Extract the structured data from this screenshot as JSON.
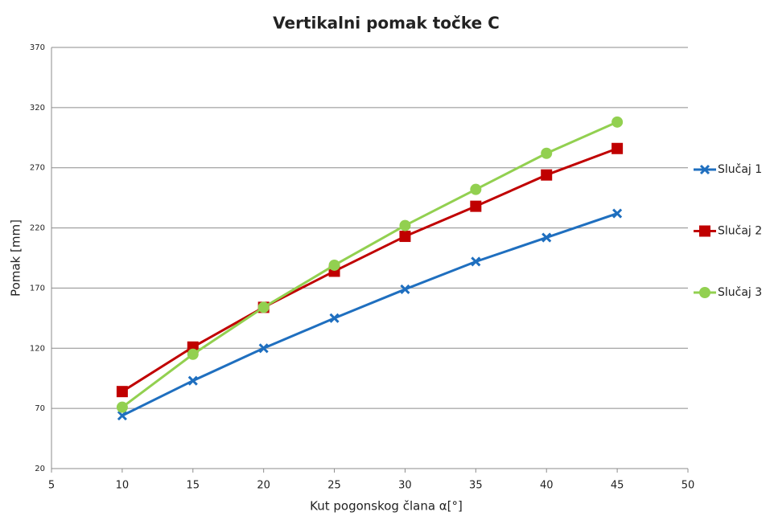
{
  "chart_data": {
    "type": "line",
    "title": "Vertikalni pomak točke C",
    "x_label": "Kut pogonskog člana α[°]",
    "y_label": "Pomak  [mm]",
    "x": [
      10,
      15,
      20,
      25,
      30,
      35,
      40,
      45
    ],
    "series": [
      {
        "name": "Slučaj 1",
        "color": "#1f6fbf",
        "marker": "x",
        "values": [
          64,
          93,
          120,
          145,
          169,
          192,
          212,
          232
        ]
      },
      {
        "name": "Slučaj 2",
        "color": "#c00000",
        "marker": "square",
        "values": [
          84,
          121,
          154,
          184,
          213,
          238,
          264,
          286
        ]
      },
      {
        "name": "Slučaj 3",
        "color": "#92d050",
        "marker": "circle",
        "values": [
          71,
          115,
          154,
          189,
          222,
          252,
          282,
          308
        ]
      }
    ],
    "xlim": [
      5,
      50
    ],
    "xticks": [
      5,
      10,
      15,
      20,
      25,
      30,
      35,
      40,
      45,
      50
    ],
    "ylim": [
      20,
      370
    ],
    "yticks": [
      20,
      70,
      120,
      170,
      220,
      270,
      320,
      370
    ],
    "grid": true,
    "legend": "right"
  }
}
